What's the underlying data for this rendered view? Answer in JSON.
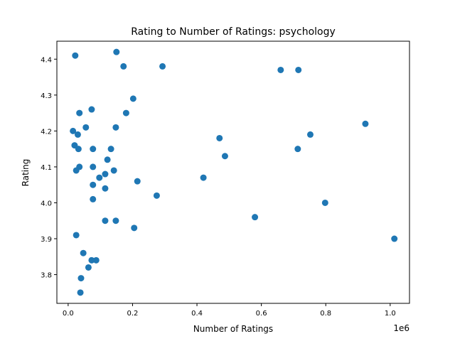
{
  "chart_data": {
    "type": "scatter",
    "title": "Rating to Number of Ratings: psychology",
    "xlabel": "Number of Ratings",
    "ylabel": "Rating",
    "x_offset_label": "1e6",
    "xlim": [
      -35000,
      1060000
    ],
    "ylim": [
      3.72,
      4.45
    ],
    "x_ticks": [
      0,
      200000,
      400000,
      600000,
      800000,
      1000000
    ],
    "x_tick_labels": [
      "0.0",
      "0.2",
      "0.4",
      "0.6",
      "0.8",
      "1.0"
    ],
    "y_ticks": [
      3.8,
      3.9,
      4.0,
      4.1,
      4.2,
      4.3,
      4.4
    ],
    "y_tick_labels": [
      "3.8",
      "3.9",
      "4.0",
      "4.1",
      "4.2",
      "4.3",
      "4.4"
    ],
    "grid": false,
    "marker_color": "#1f77b4",
    "x": [
      22000,
      150000,
      172000,
      293000,
      660000,
      715000,
      202000,
      35000,
      73000,
      55000,
      148000,
      180000,
      15000,
      30000,
      20000,
      32000,
      77000,
      133000,
      122000,
      35000,
      25000,
      77000,
      142000,
      115000,
      97000,
      77000,
      215000,
      115000,
      77000,
      275000,
      420000,
      470000,
      487000,
      713000,
      752000,
      923000,
      580000,
      798000,
      1013000,
      25000,
      115000,
      148000,
      205000,
      47000,
      73000,
      87000,
      63000,
      40000,
      38000
    ],
    "y": [
      4.41,
      4.42,
      4.38,
      4.38,
      4.37,
      4.37,
      4.29,
      4.25,
      4.26,
      4.21,
      4.21,
      4.25,
      4.2,
      4.19,
      4.16,
      4.15,
      4.15,
      4.15,
      4.12,
      4.1,
      4.09,
      4.1,
      4.09,
      4.08,
      4.07,
      4.05,
      4.06,
      4.04,
      4.01,
      4.02,
      4.07,
      4.18,
      4.13,
      4.15,
      4.19,
      4.22,
      3.96,
      4.0,
      3.9,
      3.91,
      3.95,
      3.95,
      3.93,
      3.86,
      3.84,
      3.84,
      3.82,
      3.79,
      3.75
    ]
  }
}
